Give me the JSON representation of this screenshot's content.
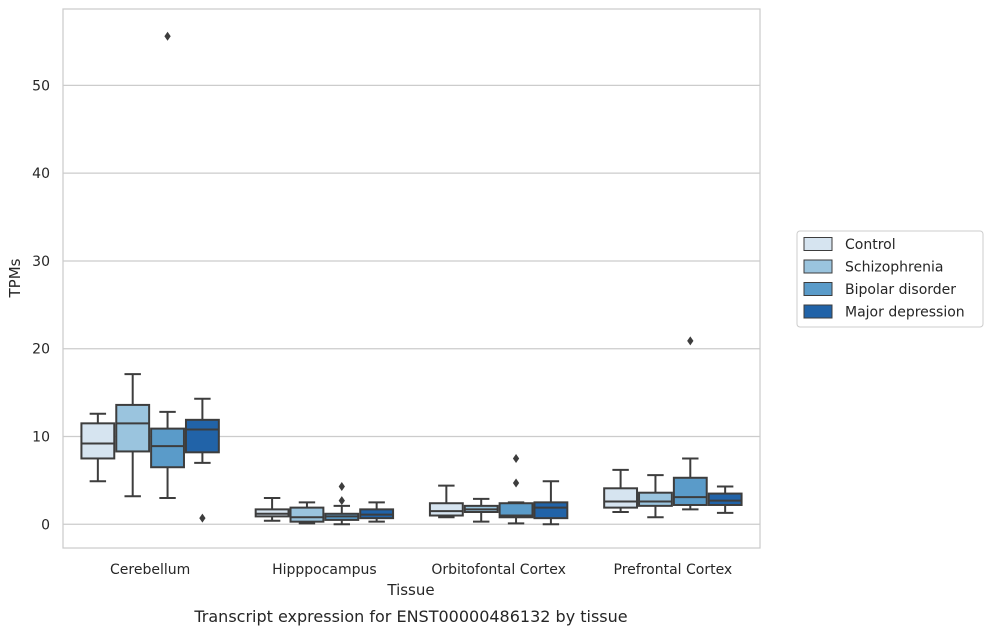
{
  "caption": "Transcript expression for ENST00000486132 by tissue",
  "chart_data": {
    "type": "boxplot",
    "title": "",
    "xlabel": "Tissue",
    "ylabel": "TPMs",
    "ylim": [
      -2.7,
      58.7
    ],
    "yticks": [
      0,
      10,
      20,
      30,
      40,
      50
    ],
    "grid": "horizontal",
    "legend_position": "right",
    "categories": [
      "Cerebellum",
      "Hipppocampus",
      "Orbitofontal Cortex",
      "Prefrontal Cortex"
    ],
    "series": [
      {
        "name": "Control",
        "color": "#d6e4f0",
        "boxes": [
          {
            "whislo": 4.9,
            "q1": 7.5,
            "med": 9.2,
            "q3": 11.5,
            "whishi": 12.6,
            "fliers": []
          },
          {
            "whislo": 0.4,
            "q1": 0.9,
            "med": 1.2,
            "q3": 1.7,
            "whishi": 3.0,
            "fliers": []
          },
          {
            "whislo": 0.8,
            "q1": 1.0,
            "med": 1.5,
            "q3": 2.4,
            "whishi": 4.4,
            "fliers": []
          },
          {
            "whislo": 1.4,
            "q1": 1.9,
            "med": 2.6,
            "q3": 4.1,
            "whishi": 6.2,
            "fliers": []
          }
        ]
      },
      {
        "name": "Schizophrenia",
        "color": "#9ac4de",
        "boxes": [
          {
            "whislo": 3.2,
            "q1": 8.3,
            "med": 11.5,
            "q3": 13.6,
            "whishi": 17.1,
            "fliers": []
          },
          {
            "whislo": 0.1,
            "q1": 0.3,
            "med": 0.8,
            "q3": 1.9,
            "whishi": 2.5,
            "fliers": []
          },
          {
            "whislo": 0.3,
            "q1": 1.4,
            "med": 1.7,
            "q3": 2.1,
            "whishi": 2.9,
            "fliers": []
          },
          {
            "whislo": 0.8,
            "q1": 2.1,
            "med": 2.6,
            "q3": 3.6,
            "whishi": 5.6,
            "fliers": []
          }
        ]
      },
      {
        "name": "Bipolar disorder",
        "color": "#5a9bc9",
        "boxes": [
          {
            "whislo": 3.0,
            "q1": 6.5,
            "med": 8.9,
            "q3": 10.9,
            "whishi": 12.8,
            "fliers": [
              55.6
            ]
          },
          {
            "whislo": 0.0,
            "q1": 0.5,
            "med": 0.9,
            "q3": 1.2,
            "whishi": 2.1,
            "fliers": [
              2.7,
              4.3
            ]
          },
          {
            "whislo": 0.1,
            "q1": 0.8,
            "med": 1.0,
            "q3": 2.4,
            "whishi": 2.5,
            "fliers": [
              4.7,
              7.5
            ]
          },
          {
            "whislo": 1.7,
            "q1": 2.2,
            "med": 3.1,
            "q3": 5.3,
            "whishi": 7.5,
            "fliers": [
              20.9
            ]
          }
        ]
      },
      {
        "name": "Major depression",
        "color": "#2163a8",
        "boxes": [
          {
            "whislo": 7.0,
            "q1": 8.2,
            "med": 10.8,
            "q3": 11.9,
            "whishi": 14.3,
            "fliers": [
              0.7
            ]
          },
          {
            "whislo": 0.3,
            "q1": 0.7,
            "med": 1.1,
            "q3": 1.7,
            "whishi": 2.5,
            "fliers": []
          },
          {
            "whislo": 0.0,
            "q1": 0.7,
            "med": 1.9,
            "q3": 2.5,
            "whishi": 4.9,
            "fliers": []
          },
          {
            "whislo": 1.3,
            "q1": 2.2,
            "med": 2.7,
            "q3": 3.5,
            "whishi": 4.3,
            "fliers": []
          }
        ]
      }
    ]
  }
}
